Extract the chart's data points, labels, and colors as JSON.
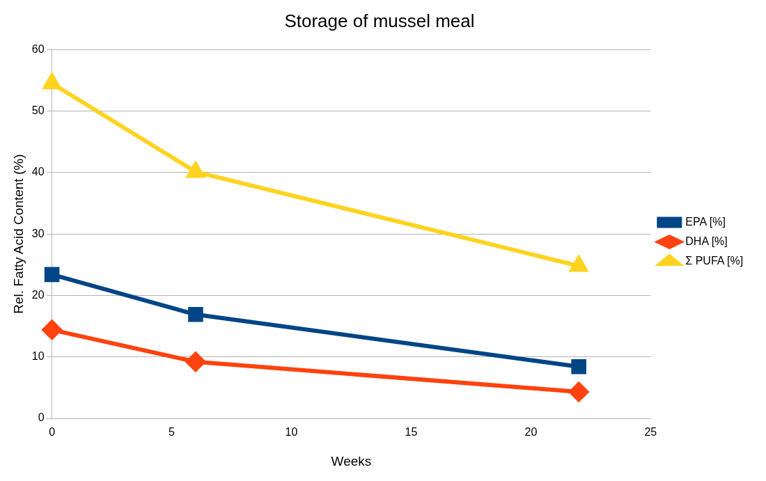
{
  "chart_data": {
    "type": "line",
    "title": "Storage of mussel meal",
    "xlabel": "Weeks",
    "ylabel": "Rel. Fatty Acid Content (%)",
    "x": [
      0,
      6,
      22
    ],
    "series": [
      {
        "name": "EPA [%]",
        "color": "#004586",
        "marker": "square",
        "values": [
          23.4,
          16.9,
          8.4
        ]
      },
      {
        "name": "DHA [%]",
        "color": "#ff420e",
        "marker": "diamond",
        "values": [
          14.4,
          9.2,
          4.3
        ]
      },
      {
        "name": "Σ PUFA [%]",
        "color": "#ffd320",
        "marker": "triangle",
        "values": [
          54.5,
          40.1,
          24.8
        ]
      }
    ],
    "xlim": [
      0,
      25
    ],
    "xticks": [
      0,
      5,
      10,
      15,
      20,
      25
    ],
    "ylim": [
      0,
      60
    ],
    "yticks": [
      0,
      10,
      20,
      30,
      40,
      50,
      60
    ],
    "grid": "y",
    "legend": "right",
    "line_style": "solid"
  }
}
